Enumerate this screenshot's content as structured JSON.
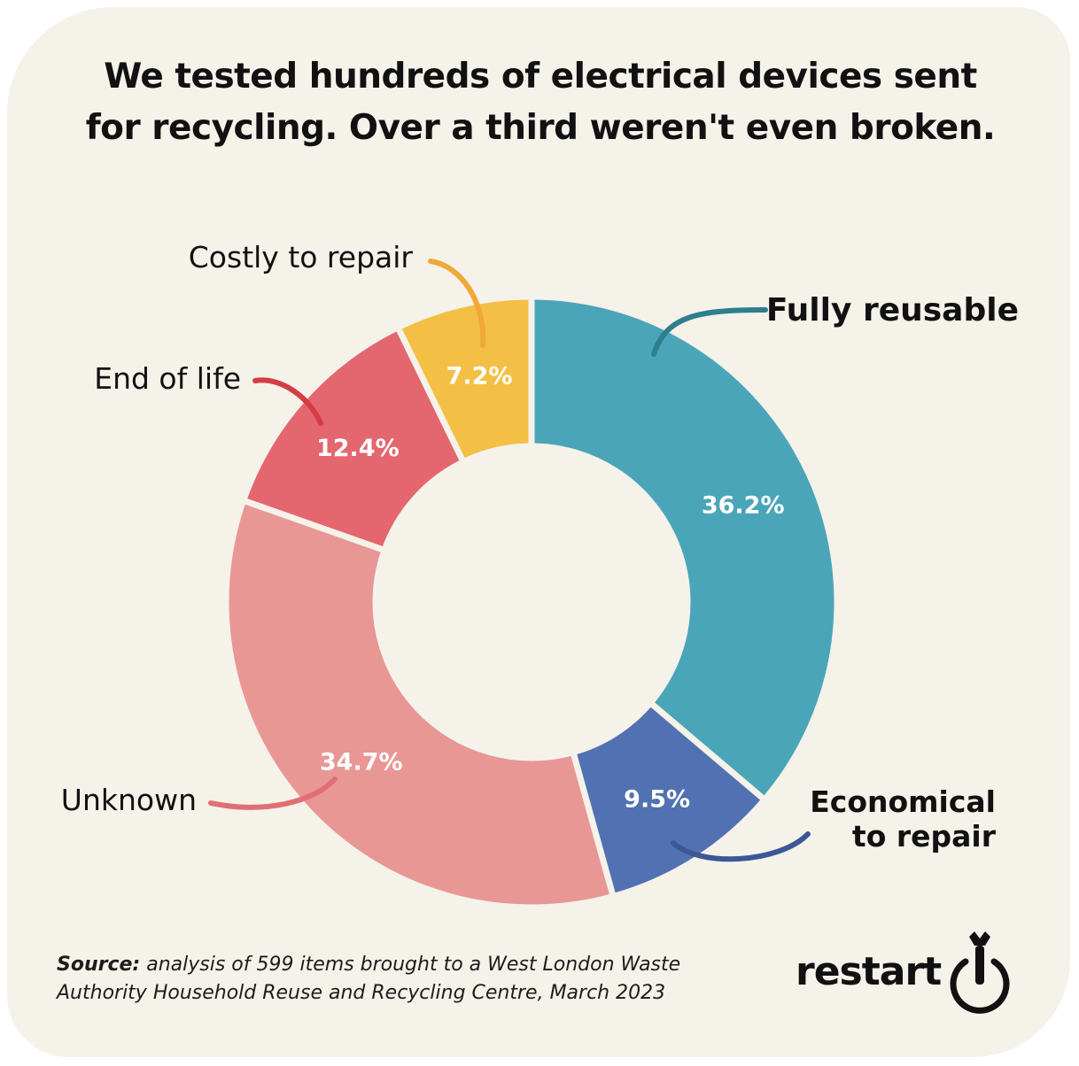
{
  "title_line1": "We tested hundreds of electrical devices sent",
  "title_line2": "for recycling. Over a third weren't even broken.",
  "source_label": "Source:",
  "source_text": "analysis of 599 items brought to a West London Waste",
  "source_text2": "Authority Household Reuse and Recycling Centre, March 2023",
  "logo_text": "restart",
  "logo_icon": "power-wrench-icon",
  "chart_data": {
    "type": "pie",
    "donut": true,
    "start": "12 o'clock",
    "direction": "clockwise",
    "slices": [
      {
        "label": "Fully reusable",
        "value": 36.2,
        "value_label": "36.2%",
        "color": "#4ba5b8",
        "leader_color": "#2f7e8e",
        "label_bold": true
      },
      {
        "label": "Economical\nto repair",
        "value": 9.5,
        "value_label": "9.5%",
        "color": "#5271b2",
        "leader_color": "#3b5796",
        "label_bold": true
      },
      {
        "label": "Unknown",
        "value": 34.7,
        "value_label": "34.7%",
        "color": "#e89795",
        "leader_color": "#e06f75",
        "label_bold": false
      },
      {
        "label": "End of life",
        "value": 12.4,
        "value_label": "12.4%",
        "color": "#e4666f",
        "leader_color": "#d63c44",
        "label_bold": false
      },
      {
        "label": "Costly to repair",
        "value": 7.2,
        "value_label": "7.2%",
        "color": "#f4bf45",
        "leader_color": "#f0a838",
        "label_bold": false
      }
    ]
  }
}
